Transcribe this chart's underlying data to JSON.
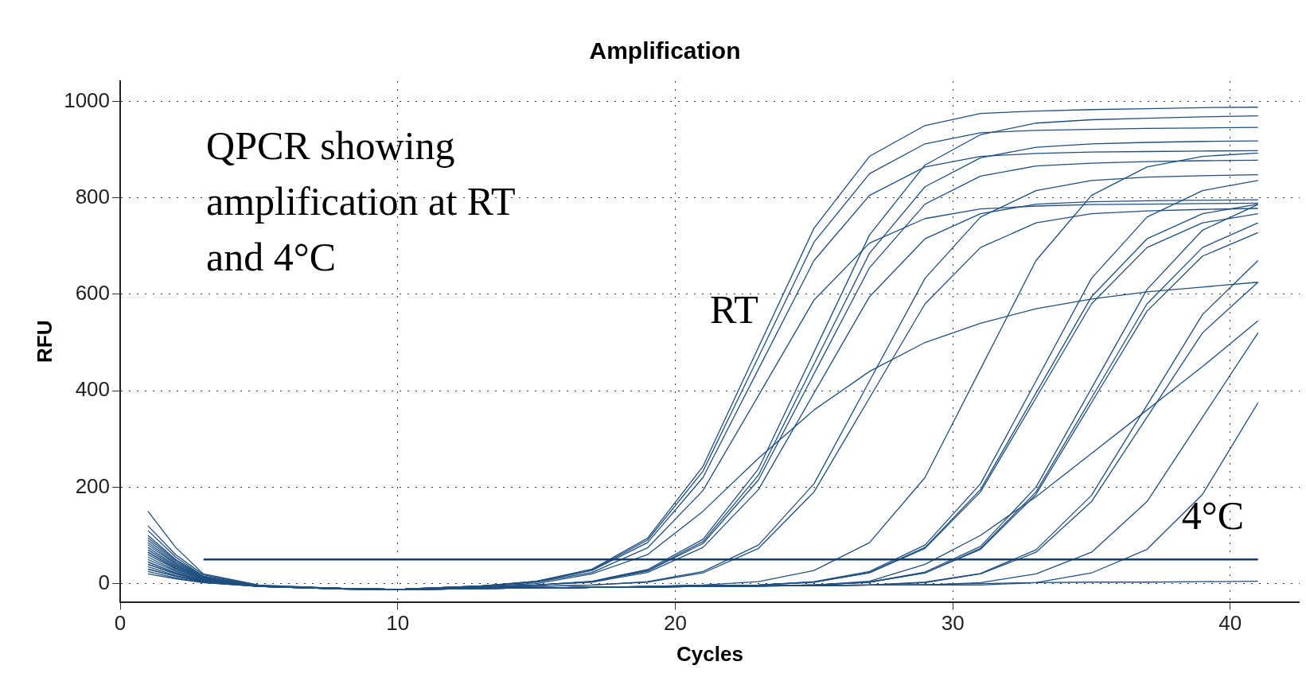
{
  "chart_data": {
    "type": "line",
    "title": "Amplification",
    "xlabel": "Cycles",
    "ylabel": "RFU",
    "x": [
      1,
      2,
      3,
      5,
      8,
      10,
      13,
      15,
      17,
      19,
      21,
      23,
      25,
      27,
      29,
      31,
      33,
      35,
      37,
      39,
      41
    ],
    "xlim": [
      0,
      42.5
    ],
    "xticks": [
      0,
      10,
      20,
      30,
      40
    ],
    "ylim": [
      -38,
      1042
    ],
    "yticks": [
      0,
      200,
      400,
      600,
      800,
      1000
    ],
    "grid": true,
    "legend": false,
    "marker": "none",
    "line_style": "solid",
    "ref_lines": [
      {
        "axis": "y",
        "value": 50,
        "color": "#0f3f73"
      }
    ],
    "annotations": [
      "QPCR showing amplification at RT and 4°C",
      "RT",
      "4°C"
    ],
    "series": [
      {
        "color": "#1f4f80",
        "values": [
          150,
          75,
          20,
          -3,
          -10,
          -12,
          -5,
          5,
          30,
          94,
          243,
          490,
          737,
          886,
          950,
          975,
          980,
          983,
          985,
          987,
          988
        ]
      },
      {
        "color": "#1f4f80",
        "values": [
          110,
          55,
          15,
          -5,
          -10,
          -12,
          -5,
          5,
          28,
          90,
          233,
          470,
          708,
          850,
          912,
          935,
          940,
          942,
          944,
          945,
          946
        ]
      },
      {
        "color": "#1f4f80",
        "values": [
          80,
          40,
          12,
          -5,
          -10,
          -12,
          -5,
          4,
          27,
          85,
          220,
          445,
          670,
          805,
          864,
          886,
          892,
          895,
          896,
          897,
          898
        ]
      },
      {
        "color": "#1f4f80",
        "values": [
          60,
          30,
          10,
          -5,
          -10,
          -12,
          -7,
          -3,
          5,
          29,
          92,
          238,
          480,
          723,
          868,
          931,
          955,
          962,
          965,
          968,
          970
        ]
      },
      {
        "color": "#1f4f80",
        "values": [
          95,
          48,
          14,
          -5,
          -10,
          -12,
          -7,
          -3,
          4,
          27,
          87,
          225,
          455,
          685,
          823,
          883,
          905,
          912,
          915,
          917,
          918
        ]
      },
      {
        "color": "#1f4f80",
        "values": [
          40,
          20,
          5,
          -6,
          -11,
          -13,
          -7,
          -3,
          4,
          26,
          83,
          215,
          435,
          655,
          787,
          845,
          866,
          872,
          875,
          877,
          878
        ]
      },
      {
        "color": "#1f4f80",
        "values": [
          70,
          35,
          10,
          -5,
          -10,
          -12,
          -5,
          3,
          23,
          74,
          193,
          390,
          588,
          706,
          757,
          777,
          783,
          786,
          787,
          788,
          789
        ]
      },
      {
        "color": "#1f4f80",
        "values": [
          50,
          25,
          8,
          -5,
          -10,
          -12,
          -7,
          -3,
          3,
          23,
          75,
          195,
          395,
          595,
          715,
          767,
          787,
          792,
          794,
          795,
          796
        ]
      },
      {
        "color": "#1f4f80",
        "values": [
          85,
          42,
          12,
          -5,
          -10,
          -12,
          -8,
          -6,
          -3,
          4,
          25,
          80,
          207,
          420,
          633,
          760,
          815,
          836,
          843,
          846,
          848
        ]
      },
      {
        "color": "#1f4f80",
        "values": [
          30,
          15,
          3,
          -6,
          -11,
          -13,
          -8,
          -6,
          -3,
          3,
          22,
          73,
          190,
          385,
          580,
          697,
          748,
          767,
          773,
          776,
          778
        ]
      },
      {
        "color": "#1f4f80",
        "values": [
          120,
          60,
          18,
          -4,
          -10,
          -12,
          -5,
          0,
          20,
          60,
          150,
          260,
          360,
          440,
          500,
          540,
          570,
          590,
          605,
          615,
          625
        ]
      },
      {
        "color": "#1f4f80",
        "values": [
          65,
          32,
          9,
          -5,
          -10,
          -12,
          -10,
          -9,
          -8,
          -6,
          -3,
          4,
          27,
          85,
          220,
          445,
          670,
          805,
          864,
          886,
          893
        ]
      },
      {
        "color": "#1f4f80",
        "values": [
          45,
          22,
          6,
          -6,
          -11,
          -13,
          -10,
          -9,
          -8,
          -6,
          -4,
          -3,
          4,
          25,
          80,
          207,
          420,
          633,
          760,
          815,
          836
        ]
      },
      {
        "color": "#1f4f80",
        "values": [
          100,
          50,
          15,
          -5,
          -10,
          -12,
          -10,
          -9,
          -8,
          -6,
          -4,
          -3,
          3,
          23,
          75,
          195,
          395,
          595,
          715,
          767,
          787
        ]
      },
      {
        "color": "#1f4f80",
        "values": [
          35,
          17,
          4,
          -6,
          -11,
          -13,
          -10,
          -9,
          -8,
          -6,
          -4,
          -3,
          3,
          22,
          73,
          190,
          385,
          580,
          697,
          748,
          767
        ]
      },
      {
        "color": "#1f4f80",
        "values": [
          75,
          37,
          11,
          -5,
          -10,
          -12,
          -10,
          -9,
          -8,
          -7,
          -6,
          -5,
          -3,
          3,
          24,
          77,
          200,
          405,
          610,
          733,
          786
        ]
      },
      {
        "color": "#1f4f80",
        "values": [
          55,
          27,
          8,
          -5,
          -10,
          -12,
          -10,
          -9,
          -8,
          -7,
          -6,
          -5,
          -3,
          3,
          22,
          73,
          190,
          385,
          580,
          697,
          748
        ]
      },
      {
        "color": "#1f4f80",
        "values": [
          25,
          12,
          2,
          -6,
          -11,
          -13,
          -10,
          -9,
          -8,
          -7,
          -6,
          -5,
          -3,
          3,
          22,
          71,
          185,
          375,
          565,
          679,
          728
        ]
      },
      {
        "color": "#1f4f80",
        "values": [
          90,
          45,
          13,
          -5,
          -10,
          -12,
          -10,
          -9,
          -8,
          -7,
          -6,
          -5,
          -4,
          -3,
          3,
          21,
          70,
          183,
          370,
          558,
          670
        ]
      },
      {
        "color": "#1f4f80",
        "values": [
          65,
          32,
          9,
          -5,
          -10,
          -12,
          -10,
          -9,
          -8,
          -7,
          -6,
          -5,
          -4,
          -3,
          2,
          20,
          65,
          170,
          345,
          520,
          625
        ]
      },
      {
        "color": "#1f4f80",
        "values": [
          45,
          22,
          6,
          -6,
          -11,
          -13,
          -10,
          -9,
          -8,
          -7,
          -6,
          -5,
          -4,
          -3,
          -3,
          2,
          20,
          65,
          170,
          345,
          520
        ]
      },
      {
        "color": "#1f4f80",
        "values": [
          30,
          15,
          4,
          -6,
          -11,
          -13,
          -10,
          -9,
          -8,
          -7,
          -6,
          -5,
          -3,
          5,
          40,
          100,
          180,
          270,
          360,
          450,
          545
        ]
      },
      {
        "color": "#1f4f80",
        "values": [
          40,
          20,
          5,
          -6,
          -11,
          -13,
          -10,
          -9,
          -8,
          -7,
          -6,
          -5,
          -4,
          -3,
          -3,
          -3,
          2,
          22,
          71,
          185,
          375
        ]
      },
      {
        "color": "#1f4f80",
        "values": [
          20,
          10,
          2,
          -6,
          -11,
          -13,
          -10,
          -9,
          -8,
          -7,
          -6,
          -5,
          -4,
          -3,
          -2,
          0,
          2,
          3,
          3,
          4,
          5
        ]
      }
    ]
  }
}
